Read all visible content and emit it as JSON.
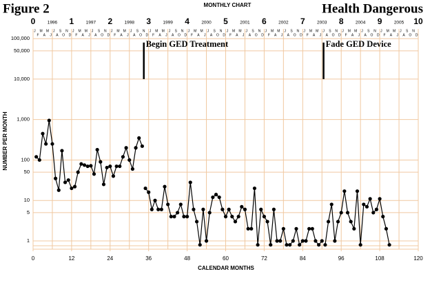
{
  "chart_data": {
    "type": "line",
    "title": "Figure 2",
    "subtitle": "MONTHLY CHART",
    "category_label": "Health Dangerous",
    "xlabel": "CALENDAR MONTHS",
    "ylabel": "NUMBER PER MONTH",
    "log_y": true,
    "grid": true,
    "grid_color": "#f0c8a0",
    "xlim": [
      0,
      120
    ],
    "xticks": [
      0,
      12,
      24,
      36,
      48,
      60,
      72,
      84,
      96,
      108,
      120
    ],
    "x2ticks": [
      {
        "value": 0,
        "label": "0"
      },
      {
        "value": 12,
        "label": "1"
      },
      {
        "value": 24,
        "label": "2"
      },
      {
        "value": 36,
        "label": "3"
      },
      {
        "value": 48,
        "label": "4"
      },
      {
        "value": 60,
        "label": "5"
      },
      {
        "value": 72,
        "label": "6"
      },
      {
        "value": 84,
        "label": "7"
      },
      {
        "value": 96,
        "label": "8"
      },
      {
        "value": 108,
        "label": "9"
      },
      {
        "value": 120,
        "label": "10"
      }
    ],
    "year_labels": [
      {
        "value": 6,
        "label": "1996"
      },
      {
        "value": 18,
        "label": "1997"
      },
      {
        "value": 30,
        "label": "1998"
      },
      {
        "value": 42,
        "label": "1999"
      },
      {
        "value": 54,
        "label": "2000"
      },
      {
        "value": 66,
        "label": "2001"
      },
      {
        "value": 78,
        "label": "2002"
      },
      {
        "value": 90,
        "label": "2003"
      },
      {
        "value": 102,
        "label": "2004"
      },
      {
        "value": 114,
        "label": "2005"
      }
    ],
    "month_letters": [
      "J",
      "F",
      "M",
      "A",
      "M",
      "J",
      "J",
      "A",
      "S",
      "O",
      "N",
      "D"
    ],
    "ylim": [
      0.625,
      174000
    ],
    "yticks": [
      {
        "value": 100000,
        "label": "100,000"
      },
      {
        "value": 50000,
        "label": "50,000"
      },
      {
        "value": 10000,
        "label": "10,000"
      },
      {
        "value": 1000,
        "label": "1,000"
      },
      100,
      50,
      10,
      5,
      1
    ],
    "annotations": [
      {
        "text": "Begin GED Treatment",
        "x": 34.5,
        "y_from": 10000,
        "y_to": 80000
      },
      {
        "text": "Fade GED Device",
        "x": 90.5,
        "y_from": 10000,
        "y_to": 80000
      }
    ],
    "color": "#000000",
    "x": [
      1,
      2,
      3,
      4,
      5,
      6,
      7,
      8,
      9,
      10,
      11,
      12,
      13,
      14,
      15,
      16,
      17,
      18,
      19,
      20,
      21,
      22,
      23,
      24,
      25,
      26,
      27,
      28,
      29,
      30,
      31,
      32,
      33,
      34,
      35,
      36,
      37,
      38,
      39,
      40,
      41,
      42,
      43,
      44,
      45,
      46,
      47,
      48,
      49,
      50,
      51,
      52,
      53,
      54,
      55,
      56,
      57,
      58,
      59,
      60,
      61,
      62,
      63,
      64,
      65,
      66,
      67,
      68,
      69,
      70,
      71,
      72,
      73,
      74,
      75,
      76,
      77,
      78,
      79,
      80,
      81,
      82,
      83,
      84,
      85,
      86,
      87,
      88,
      89,
      90,
      91,
      92,
      93,
      94,
      95,
      96,
      97,
      98,
      99,
      100,
      101,
      102,
      103,
      104,
      105,
      106,
      107,
      108,
      109,
      110,
      111
    ],
    "values": [
      120,
      100,
      450,
      250,
      950,
      250,
      35,
      18,
      170,
      28,
      32,
      20,
      22,
      50,
      80,
      75,
      70,
      72,
      45,
      180,
      90,
      25,
      65,
      70,
      40,
      70,
      70,
      120,
      200,
      100,
      60,
      200,
      350,
      220,
      20,
      16,
      6,
      10,
      6,
      6,
      22,
      8,
      4,
      4,
      5,
      8,
      4,
      4,
      28,
      6,
      3,
      0.8,
      6,
      1,
      5,
      12,
      14,
      12,
      6,
      4,
      6,
      4,
      3,
      4,
      7,
      6,
      2,
      2,
      20,
      0.8,
      6,
      4,
      3,
      0.8,
      6,
      1,
      1,
      2,
      0.8,
      0.8,
      1,
      2,
      0.8,
      1,
      1,
      2,
      2,
      1,
      0.8,
      1,
      0.8,
      3,
      8,
      1,
      3,
      5,
      17,
      5,
      3,
      2,
      17,
      0.8,
      8,
      7,
      11,
      5,
      6,
      11,
      4,
      2,
      0.8
    ]
  }
}
